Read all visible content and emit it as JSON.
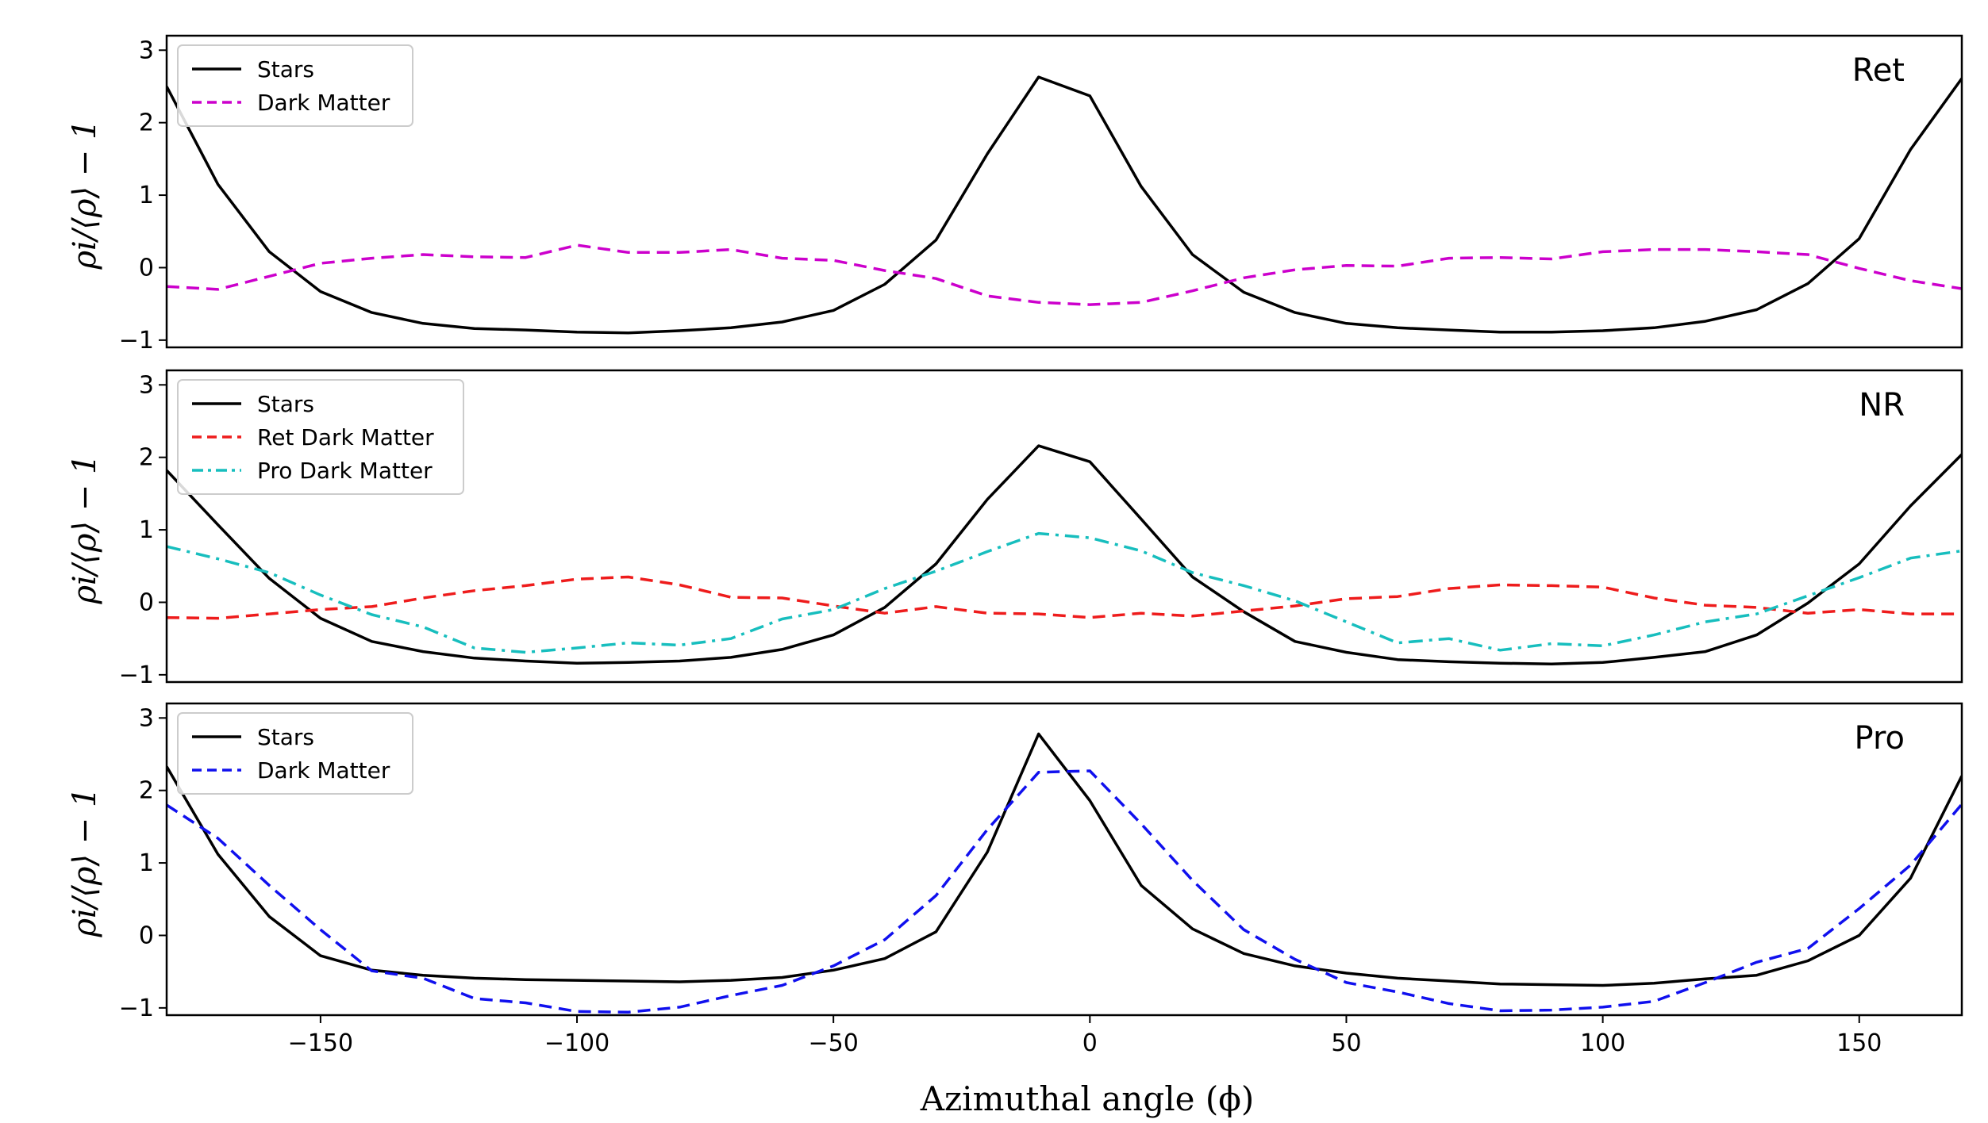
{
  "chart_data": [
    {
      "type": "line",
      "panel": "Ret",
      "ylabel": "ρi/⟨ρ⟩ − 1",
      "xlim": [
        -180,
        170
      ],
      "ylim": [
        -1.1,
        3.2
      ],
      "yticks": [
        -1,
        0,
        1,
        2,
        3
      ],
      "x": [
        -180,
        -170,
        -160,
        -150,
        -140,
        -130,
        -120,
        -110,
        -100,
        -90,
        -80,
        -70,
        -60,
        -50,
        -40,
        -30,
        -20,
        -10,
        0,
        10,
        20,
        30,
        40,
        50,
        60,
        70,
        80,
        90,
        100,
        110,
        120,
        130,
        140,
        150,
        160,
        170
      ],
      "series": [
        {
          "name": "Stars",
          "color": "#000000",
          "dash": "solid",
          "values": [
            2.5,
            1.15,
            0.22,
            -0.33,
            -0.62,
            -0.77,
            -0.84,
            -0.86,
            -0.89,
            -0.9,
            -0.87,
            -0.83,
            -0.75,
            -0.59,
            -0.23,
            0.38,
            1.57,
            2.63,
            2.37,
            1.12,
            0.18,
            -0.34,
            -0.62,
            -0.77,
            -0.83,
            -0.86,
            -0.89,
            -0.89,
            -0.87,
            -0.83,
            -0.74,
            -0.58,
            -0.22,
            0.4,
            1.63,
            2.61
          ]
        },
        {
          "name": "Dark Matter",
          "color": "#cc00cc",
          "dash": "dashed",
          "values": [
            -0.26,
            -0.3,
            -0.12,
            0.06,
            0.13,
            0.18,
            0.15,
            0.14,
            0.31,
            0.21,
            0.21,
            0.25,
            0.13,
            0.1,
            -0.04,
            -0.15,
            -0.39,
            -0.48,
            -0.51,
            -0.48,
            -0.32,
            -0.14,
            -0.03,
            0.03,
            0.02,
            0.13,
            0.14,
            0.12,
            0.22,
            0.25,
            0.25,
            0.22,
            0.18,
            -0.01,
            -0.18,
            -0.29
          ]
        }
      ]
    },
    {
      "type": "line",
      "panel": "NR",
      "ylabel": "ρi/⟨ρ⟩ − 1",
      "xlim": [
        -180,
        170
      ],
      "ylim": [
        -1.1,
        3.2
      ],
      "yticks": [
        -1,
        0,
        1,
        2,
        3
      ],
      "x": [
        -180,
        -170,
        -160,
        -150,
        -140,
        -130,
        -120,
        -110,
        -100,
        -90,
        -80,
        -70,
        -60,
        -50,
        -40,
        -30,
        -20,
        -10,
        0,
        10,
        20,
        30,
        40,
        50,
        60,
        70,
        80,
        90,
        100,
        110,
        120,
        130,
        140,
        150,
        160,
        170
      ],
      "series": [
        {
          "name": "Stars",
          "color": "#000000",
          "dash": "solid",
          "values": [
            1.82,
            1.07,
            0.33,
            -0.22,
            -0.54,
            -0.68,
            -0.77,
            -0.81,
            -0.84,
            -0.83,
            -0.81,
            -0.76,
            -0.65,
            -0.45,
            -0.07,
            0.53,
            1.42,
            2.16,
            1.94,
            1.15,
            0.35,
            -0.13,
            -0.54,
            -0.69,
            -0.79,
            -0.82,
            -0.84,
            -0.85,
            -0.83,
            -0.76,
            -0.68,
            -0.45,
            -0.01,
            0.53,
            1.33,
            2.04
          ]
        },
        {
          "name": "Ret Dark Matter",
          "color": "#ee1c1c",
          "dash": "dashed",
          "values": [
            -0.21,
            -0.22,
            -0.16,
            -0.1,
            -0.06,
            0.06,
            0.16,
            0.23,
            0.32,
            0.35,
            0.24,
            0.07,
            0.06,
            -0.05,
            -0.15,
            -0.06,
            -0.15,
            -0.16,
            -0.21,
            -0.15,
            -0.19,
            -0.12,
            -0.05,
            0.05,
            0.08,
            0.19,
            0.24,
            0.23,
            0.21,
            0.06,
            -0.04,
            -0.07,
            -0.15,
            -0.1,
            -0.16,
            -0.16
          ]
        },
        {
          "name": "Pro Dark Matter",
          "color": "#17bebe",
          "dash": "dashdot",
          "values": [
            0.77,
            0.6,
            0.41,
            0.1,
            -0.17,
            -0.34,
            -0.63,
            -0.69,
            -0.63,
            -0.56,
            -0.59,
            -0.5,
            -0.23,
            -0.1,
            0.19,
            0.43,
            0.7,
            0.95,
            0.89,
            0.71,
            0.41,
            0.23,
            0.02,
            -0.27,
            -0.56,
            -0.5,
            -0.66,
            -0.57,
            -0.6,
            -0.45,
            -0.27,
            -0.16,
            0.09,
            0.34,
            0.61,
            0.71
          ]
        }
      ]
    },
    {
      "type": "line",
      "panel": "Pro",
      "ylabel": "ρi/⟨ρ⟩ − 1",
      "xlabel": "Azimuthal angle (ϕ)",
      "xlim": [
        -180,
        170
      ],
      "ylim": [
        -1.1,
        3.2
      ],
      "yticks": [
        -1,
        0,
        1,
        2,
        3
      ],
      "xticks": [
        -150,
        -100,
        -50,
        0,
        50,
        100,
        150
      ],
      "x": [
        -180,
        -170,
        -160,
        -150,
        -140,
        -130,
        -120,
        -110,
        -100,
        -90,
        -80,
        -70,
        -60,
        -50,
        -40,
        -30,
        -20,
        -10,
        0,
        10,
        20,
        30,
        40,
        50,
        60,
        70,
        80,
        90,
        100,
        110,
        120,
        130,
        140,
        150,
        160,
        170
      ],
      "series": [
        {
          "name": "Stars",
          "color": "#000000",
          "dash": "solid",
          "values": [
            2.33,
            1.12,
            0.26,
            -0.28,
            -0.48,
            -0.55,
            -0.59,
            -0.61,
            -0.62,
            -0.63,
            -0.64,
            -0.62,
            -0.58,
            -0.48,
            -0.32,
            0.05,
            1.15,
            2.78,
            1.86,
            0.69,
            0.09,
            -0.25,
            -0.42,
            -0.52,
            -0.59,
            -0.63,
            -0.67,
            -0.68,
            -0.69,
            -0.66,
            -0.6,
            -0.55,
            -0.35,
            0.0,
            0.79,
            2.2
          ]
        },
        {
          "name": "Dark Matter",
          "color": "#1010ee",
          "dash": "dashed",
          "values": [
            1.8,
            1.34,
            0.69,
            0.08,
            -0.49,
            -0.59,
            -0.87,
            -0.93,
            -1.05,
            -1.06,
            -0.99,
            -0.83,
            -0.69,
            -0.42,
            -0.06,
            0.55,
            1.46,
            2.25,
            2.27,
            1.54,
            0.76,
            0.08,
            -0.33,
            -0.65,
            -0.78,
            -0.94,
            -1.04,
            -1.03,
            -0.99,
            -0.91,
            -0.65,
            -0.37,
            -0.18,
            0.37,
            0.97,
            1.81
          ]
        }
      ]
    }
  ]
}
